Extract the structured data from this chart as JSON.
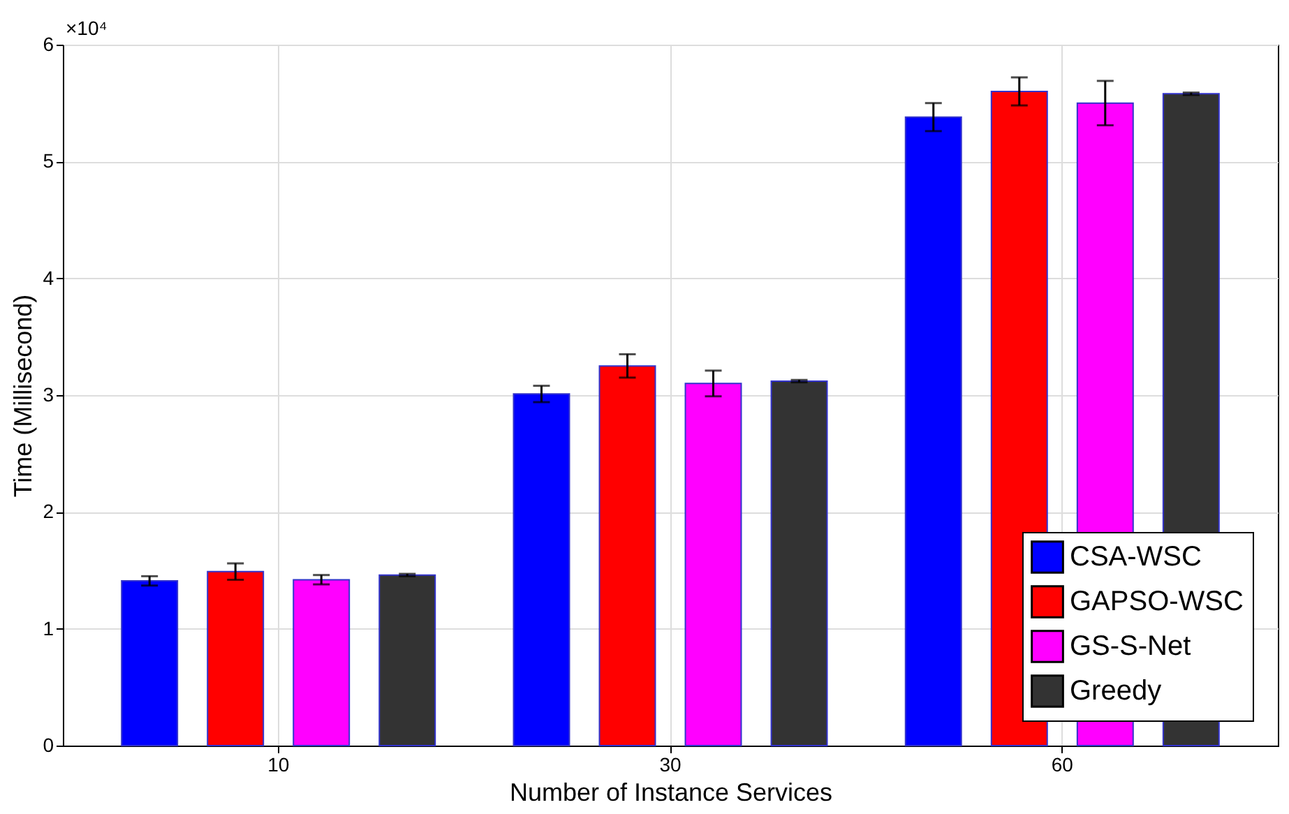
{
  "chart_data": {
    "type": "bar",
    "xlabel": "Number of Instance Services",
    "ylabel": "Time (Millisecond)",
    "categories": [
      "10",
      "30",
      "60"
    ],
    "series": [
      {
        "name": "CSA-WSC",
        "color": "#0000ff",
        "values": [
          1.41,
          3.01,
          5.38
        ],
        "errors": [
          0.04,
          0.07,
          0.12
        ]
      },
      {
        "name": "GAPSO-WSC",
        "color": "#ff0000",
        "values": [
          1.49,
          3.25,
          5.6
        ],
        "errors": [
          0.07,
          0.1,
          0.12
        ]
      },
      {
        "name": "GS-S-Net",
        "color": "#ff00ff",
        "values": [
          1.42,
          3.1,
          5.5
        ],
        "errors": [
          0.04,
          0.11,
          0.19
        ]
      },
      {
        "name": "Greedy",
        "color": "#333333",
        "values": [
          1.46,
          3.12,
          5.58
        ],
        "errors": [
          0.01,
          0.01,
          0.01
        ]
      }
    ],
    "ylim": [
      0,
      6
    ],
    "yticks": [
      0,
      1,
      2,
      3,
      4,
      5,
      6
    ],
    "annotations": [
      "×10⁴"
    ],
    "grid": true,
    "legend": "bottom right"
  }
}
